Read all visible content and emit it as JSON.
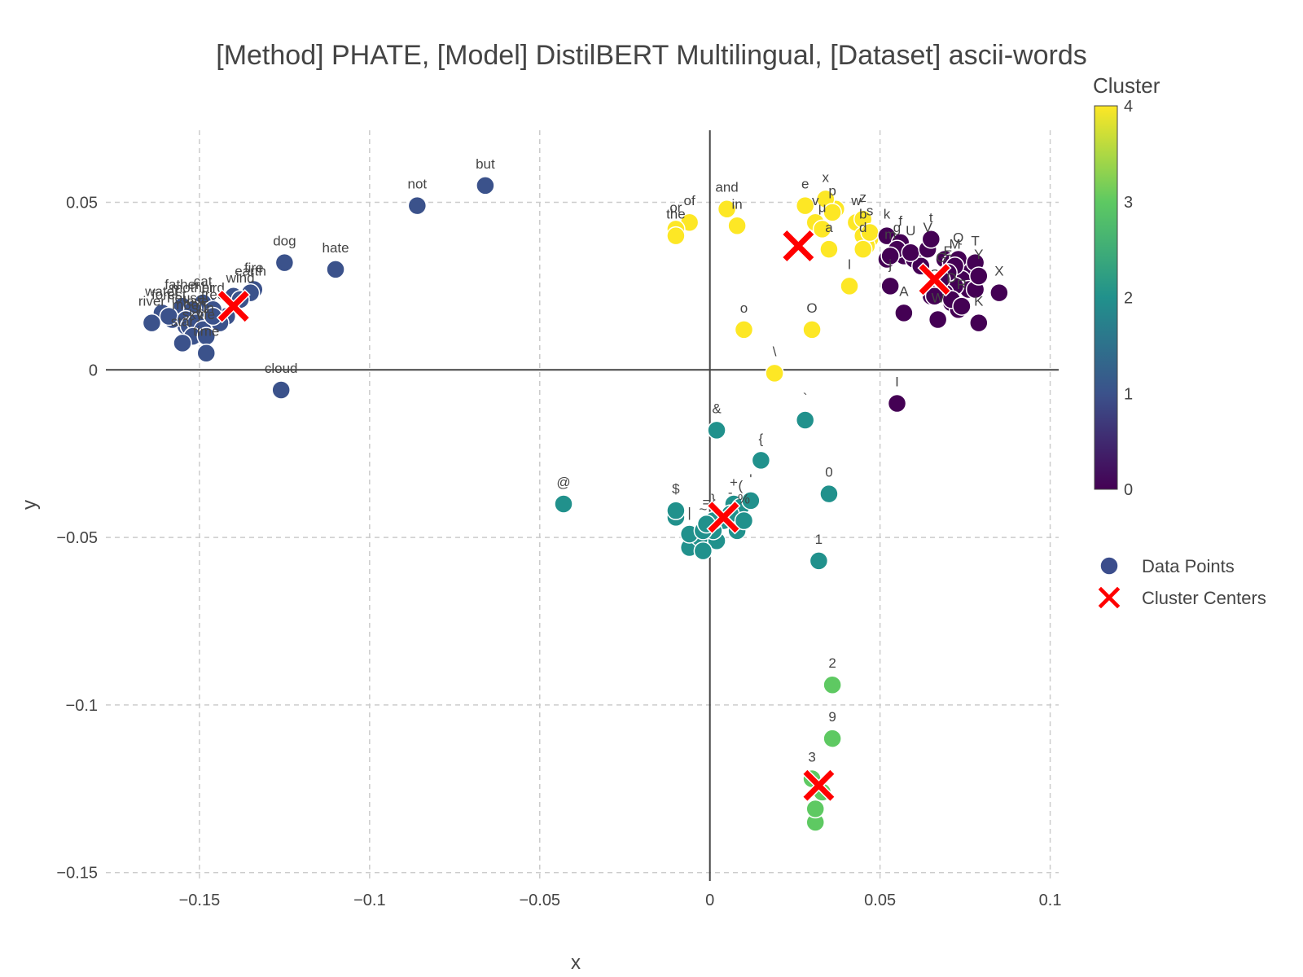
{
  "chart_data": {
    "type": "scatter",
    "title": "[Method] PHATE, [Model] DistilBERT Multilingual, [Dataset] ascii-words",
    "xlabel": "x",
    "ylabel": "y",
    "xlim": [
      -0.1775,
      0.1025
    ],
    "ylim": [
      -0.1525,
      0.0715
    ],
    "x_ticks": [
      -0.15,
      -0.1,
      -0.05,
      0,
      0.05,
      0.1
    ],
    "x_tick_labels": [
      "−0.15",
      "−0.1",
      "−0.05",
      "0",
      "0.05",
      "0.1"
    ],
    "y_ticks": [
      -0.15,
      -0.1,
      -0.05,
      0,
      0.05
    ],
    "y_tick_labels": [
      "−0.15",
      "−0.1",
      "−0.05",
      "0",
      "0.05"
    ],
    "grid": true,
    "legend": {
      "position": "right",
      "entries": [
        {
          "name": "Data Points",
          "marker": "circle",
          "color": "#3b4d8c"
        },
        {
          "name": "Cluster Centers",
          "marker": "x",
          "color": "#ff0000"
        }
      ]
    },
    "colorbar": {
      "title": "Cluster",
      "min": 0,
      "max": 4,
      "tick_labels": [
        "0",
        "1",
        "2",
        "3",
        "4"
      ],
      "colorscale": [
        "#440154",
        "#3b528b",
        "#21918c",
        "#5ec962",
        "#fde725"
      ]
    },
    "cluster_colors": [
      "#440154",
      "#3b528b",
      "#21918c",
      "#5ec962",
      "#fde725"
    ],
    "points": [
      {
        "label": "not",
        "x": -0.086,
        "y": 0.049,
        "cluster": 1
      },
      {
        "label": "but",
        "x": -0.066,
        "y": 0.055,
        "cluster": 1
      },
      {
        "label": "dog",
        "x": -0.125,
        "y": 0.032,
        "cluster": 1
      },
      {
        "label": "hate",
        "x": -0.11,
        "y": 0.03,
        "cluster": 1
      },
      {
        "label": "cloud",
        "x": -0.126,
        "y": -0.006,
        "cluster": 1
      },
      {
        "label": "fire",
        "x": -0.134,
        "y": 0.024,
        "cluster": 1
      },
      {
        "label": "earth",
        "x": -0.135,
        "y": 0.023,
        "cluster": 1
      },
      {
        "label": "wind",
        "x": -0.138,
        "y": 0.021,
        "cluster": 1
      },
      {
        "label": "cat",
        "x": -0.149,
        "y": 0.02,
        "cluster": 1
      },
      {
        "label": "bird",
        "x": -0.146,
        "y": 0.018,
        "cluster": 1
      },
      {
        "label": "father",
        "x": -0.155,
        "y": 0.019,
        "cluster": 1
      },
      {
        "label": "mother",
        "x": -0.152,
        "y": 0.018,
        "cluster": 1
      },
      {
        "label": "water",
        "x": -0.161,
        "y": 0.017,
        "cluster": 1
      },
      {
        "label": "forest",
        "x": -0.159,
        "y": 0.016,
        "cluster": 1
      },
      {
        "label": "river",
        "x": -0.164,
        "y": 0.014,
        "cluster": 1
      },
      {
        "label": "house",
        "x": -0.154,
        "y": 0.015,
        "cluster": 1
      },
      {
        "label": "moon",
        "x": -0.153,
        "y": 0.013,
        "cluster": 1
      },
      {
        "label": "love",
        "x": -0.151,
        "y": 0.014,
        "cluster": 1
      },
      {
        "label": "sun",
        "x": -0.149,
        "y": 0.012,
        "cluster": 1
      },
      {
        "label": "tree",
        "x": -0.146,
        "y": 0.016,
        "cluster": 1
      },
      {
        "label": "sky",
        "x": -0.152,
        "y": 0.01,
        "cluster": 1
      },
      {
        "label": "star",
        "x": -0.155,
        "y": 0.008,
        "cluster": 1
      },
      {
        "label": "life",
        "x": -0.148,
        "y": 0.01,
        "cluster": 1
      },
      {
        "label": "time",
        "x": -0.148,
        "y": 0.005,
        "cluster": 1
      },
      {
        "label": "of",
        "x": -0.006,
        "y": 0.044,
        "cluster": 4
      },
      {
        "label": "or",
        "x": -0.01,
        "y": 0.042,
        "cluster": 4
      },
      {
        "label": "the",
        "x": -0.01,
        "y": 0.04,
        "cluster": 4
      },
      {
        "label": "and",
        "x": 0.005,
        "y": 0.048,
        "cluster": 4
      },
      {
        "label": "in",
        "x": 0.008,
        "y": 0.043,
        "cluster": 4
      },
      {
        "label": "e",
        "x": 0.028,
        "y": 0.049,
        "cluster": 4
      },
      {
        "label": "x",
        "x": 0.034,
        "y": 0.051,
        "cluster": 4
      },
      {
        "label": "p",
        "x": 0.036,
        "y": 0.047,
        "cluster": 4
      },
      {
        "label": "v",
        "x": 0.031,
        "y": 0.044,
        "cluster": 4
      },
      {
        "label": "μ",
        "x": 0.033,
        "y": 0.042,
        "cluster": 4
      },
      {
        "label": "w",
        "x": 0.043,
        "y": 0.044,
        "cluster": 4
      },
      {
        "label": "z",
        "x": 0.045,
        "y": 0.045,
        "cluster": 4
      },
      {
        "label": "b",
        "x": 0.045,
        "y": 0.04,
        "cluster": 4
      },
      {
        "label": "s",
        "x": 0.047,
        "y": 0.041,
        "cluster": 4
      },
      {
        "label": "d",
        "x": 0.045,
        "y": 0.036,
        "cluster": 4
      },
      {
        "label": "a",
        "x": 0.035,
        "y": 0.036,
        "cluster": 4
      },
      {
        "label": "l",
        "x": 0.041,
        "y": 0.025,
        "cluster": 4
      },
      {
        "label": "o",
        "x": 0.01,
        "y": 0.012,
        "cluster": 4
      },
      {
        "label": "O",
        "x": 0.03,
        "y": 0.012,
        "cluster": 4
      },
      {
        "label": "\\",
        "x": 0.019,
        "y": -0.001,
        "cluster": 4
      },
      {
        "label": "k",
        "x": 0.052,
        "y": 0.04,
        "cluster": 0
      },
      {
        "label": "f",
        "x": 0.056,
        "y": 0.038,
        "cluster": 0
      },
      {
        "label": "g",
        "x": 0.055,
        "y": 0.036,
        "cluster": 0
      },
      {
        "label": "m",
        "x": 0.053,
        "y": 0.034,
        "cluster": 0
      },
      {
        "label": "U",
        "x": 0.059,
        "y": 0.035,
        "cluster": 0
      },
      {
        "label": "V",
        "x": 0.064,
        "y": 0.036,
        "cluster": 0
      },
      {
        "label": "t",
        "x": 0.065,
        "y": 0.039,
        "cluster": 0
      },
      {
        "label": "Q",
        "x": 0.073,
        "y": 0.033,
        "cluster": 0
      },
      {
        "label": "T",
        "x": 0.078,
        "y": 0.032,
        "cluster": 0
      },
      {
        "label": "M",
        "x": 0.072,
        "y": 0.031,
        "cluster": 0
      },
      {
        "label": "Y",
        "x": 0.079,
        "y": 0.028,
        "cluster": 0
      },
      {
        "label": "E",
        "x": 0.07,
        "y": 0.029,
        "cluster": 0
      },
      {
        "label": "G",
        "x": 0.068,
        "y": 0.027,
        "cluster": 0
      },
      {
        "label": "X",
        "x": 0.085,
        "y": 0.023,
        "cluster": 0
      },
      {
        "label": "j",
        "x": 0.053,
        "y": 0.025,
        "cluster": 0
      },
      {
        "label": "A",
        "x": 0.057,
        "y": 0.017,
        "cluster": 0
      },
      {
        "label": "C",
        "x": 0.066,
        "y": 0.022,
        "cluster": 0
      },
      {
        "label": "D",
        "x": 0.071,
        "y": 0.021,
        "cluster": 0
      },
      {
        "label": "R",
        "x": 0.074,
        "y": 0.019,
        "cluster": 0
      },
      {
        "label": "K",
        "x": 0.079,
        "y": 0.014,
        "cluster": 0
      },
      {
        "label": "W",
        "x": 0.067,
        "y": 0.015,
        "cluster": 0
      },
      {
        "label": "I",
        "x": 0.055,
        "y": -0.01,
        "cluster": 0
      },
      {
        "label": "&",
        "x": 0.002,
        "y": -0.018,
        "cluster": 2
      },
      {
        "label": "`",
        "x": 0.028,
        "y": -0.015,
        "cluster": 2
      },
      {
        "label": "{",
        "x": 0.015,
        "y": -0.027,
        "cluster": 2
      },
      {
        "label": "@",
        "x": -0.043,
        "y": -0.04,
        "cluster": 2
      },
      {
        "label": "$",
        "x": -0.01,
        "y": -0.042,
        "cluster": 2
      },
      {
        "label": "0",
        "x": 0.035,
        "y": -0.037,
        "cluster": 2
      },
      {
        "label": "}",
        "x": 0.001,
        "y": -0.045,
        "cluster": 2
      },
      {
        "label": "+",
        "x": 0.007,
        "y": -0.04,
        "cluster": 2
      },
      {
        "label": "(",
        "x": 0.009,
        "y": -0.041,
        "cluster": 2
      },
      {
        "label": "'",
        "x": 0.012,
        "y": -0.039,
        "cluster": 2
      },
      {
        "label": "-",
        "x": 0.006,
        "y": -0.043,
        "cluster": 2
      },
      {
        "label": "%",
        "x": 0.01,
        "y": -0.045,
        "cluster": 2
      },
      {
        "label": "|",
        "x": -0.006,
        "y": -0.049,
        "cluster": 2
      },
      {
        "label": "~",
        "x": -0.002,
        "y": -0.048,
        "cluster": 2
      },
      {
        "label": "=",
        "x": -0.001,
        "y": -0.046,
        "cluster": 2
      },
      {
        "label": "1",
        "x": 0.032,
        "y": -0.057,
        "cluster": 2
      },
      {
        "label": "2",
        "x": 0.036,
        "y": -0.094,
        "cluster": 3
      },
      {
        "label": "9",
        "x": 0.036,
        "y": -0.11,
        "cluster": 3
      },
      {
        "label": "3",
        "x": 0.03,
        "y": -0.122,
        "cluster": 3
      },
      {
        "label": "8",
        "x": 0.031,
        "y": -0.131,
        "cluster": 3
      }
    ],
    "unlabeled_points": [
      {
        "x": -0.14,
        "y": 0.022,
        "cluster": 1
      },
      {
        "x": -0.142,
        "y": 0.016,
        "cluster": 1
      },
      {
        "x": -0.15,
        "y": 0.017,
        "cluster": 1
      },
      {
        "x": -0.156,
        "y": 0.017,
        "cluster": 1
      },
      {
        "x": -0.144,
        "y": 0.014,
        "cluster": 1
      },
      {
        "x": -0.154,
        "y": 0.013,
        "cluster": 1
      },
      {
        "x": -0.15,
        "y": 0.015,
        "cluster": 1
      },
      {
        "x": -0.158,
        "y": 0.015,
        "cluster": 1
      },
      {
        "x": -0.147,
        "y": 0.019,
        "cluster": 1
      },
      {
        "x": 0.052,
        "y": 0.033,
        "cluster": 0
      },
      {
        "x": 0.057,
        "y": 0.034,
        "cluster": 0
      },
      {
        "x": 0.06,
        "y": 0.033,
        "cluster": 0
      },
      {
        "x": 0.062,
        "y": 0.031,
        "cluster": 0
      },
      {
        "x": 0.069,
        "y": 0.033,
        "cluster": 0
      },
      {
        "x": 0.071,
        "y": 0.032,
        "cluster": 0
      },
      {
        "x": 0.075,
        "y": 0.03,
        "cluster": 0
      },
      {
        "x": 0.074,
        "y": 0.027,
        "cluster": 0
      },
      {
        "x": 0.076,
        "y": 0.024,
        "cluster": 0
      },
      {
        "x": 0.078,
        "y": 0.024,
        "cluster": 0
      },
      {
        "x": 0.072,
        "y": 0.025,
        "cluster": 0
      },
      {
        "x": 0.065,
        "y": 0.024,
        "cluster": 0
      },
      {
        "x": 0.065,
        "y": 0.022,
        "cluster": 0
      },
      {
        "x": 0.069,
        "y": 0.023,
        "cluster": 0
      },
      {
        "x": 0.071,
        "y": 0.02,
        "cluster": 0
      },
      {
        "x": 0.073,
        "y": 0.018,
        "cluster": 0
      },
      {
        "x": 0.047,
        "y": 0.039,
        "cluster": 4
      },
      {
        "x": 0.046,
        "y": 0.037,
        "cluster": 4
      },
      {
        "x": 0.037,
        "y": 0.048,
        "cluster": 4
      },
      {
        "x": -0.01,
        "y": -0.044,
        "cluster": 2
      },
      {
        "x": -0.006,
        "y": -0.053,
        "cluster": 2
      },
      {
        "x": -0.003,
        "y": -0.05,
        "cluster": 2
      },
      {
        "x": 0.002,
        "y": -0.051,
        "cluster": 2
      },
      {
        "x": -0.002,
        "y": -0.054,
        "cluster": 2
      },
      {
        "x": 0.008,
        "y": -0.048,
        "cluster": 2
      },
      {
        "x": 0.004,
        "y": -0.045,
        "cluster": 2
      },
      {
        "x": 0.001,
        "y": -0.048,
        "cluster": 2
      },
      {
        "x": 0.031,
        "y": -0.135,
        "cluster": 3
      },
      {
        "x": 0.033,
        "y": -0.126,
        "cluster": 3
      }
    ],
    "cluster_centers": [
      {
        "cluster": 0,
        "x": 0.066,
        "y": 0.027
      },
      {
        "cluster": 1,
        "x": -0.14,
        "y": 0.019
      },
      {
        "cluster": 2,
        "x": 0.004,
        "y": -0.044
      },
      {
        "cluster": 3,
        "x": 0.032,
        "y": -0.124
      },
      {
        "cluster": 4,
        "x": 0.026,
        "y": 0.037
      }
    ]
  }
}
